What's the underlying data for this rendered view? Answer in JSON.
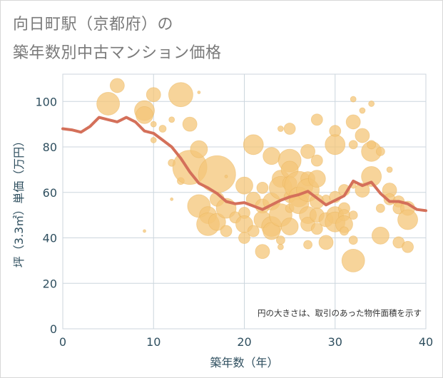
{
  "title": {
    "line1": "向日町駅（京都府）の",
    "line2": "築年数別中古マンション価格"
  },
  "colors": {
    "bubble": "#f4c678",
    "bubble_stroke": "#e9b35a",
    "line": "#d4705a",
    "grid": "#ccd6dd",
    "axis_text": "#2f4f5f",
    "plot_bg": "#ffffff"
  },
  "chart_data": {
    "type": "scatter",
    "title": "向日町駅（京都府）の築年数別中古マンション価格",
    "xlabel": "築年数（年）",
    "ylabel": "坪（3.3㎡）単価（万円）",
    "xlim": [
      0,
      40
    ],
    "ylim": [
      0,
      112
    ],
    "xticks": [
      0,
      10,
      20,
      30,
      40
    ],
    "yticks": [
      0,
      20,
      40,
      60,
      80,
      100
    ],
    "grid": true,
    "note": "円の大きさは、取引のあった物件面積を示す",
    "series": [
      {
        "type": "bubble",
        "points": [
          {
            "x": 5,
            "y": 99,
            "s": 16
          },
          {
            "x": 6,
            "y": 107,
            "s": 10
          },
          {
            "x": 9,
            "y": 96,
            "s": 14
          },
          {
            "x": 9,
            "y": 94,
            "s": 12
          },
          {
            "x": 9,
            "y": 43,
            "s": 2
          },
          {
            "x": 10,
            "y": 103,
            "s": 10
          },
          {
            "x": 10,
            "y": 90,
            "s": 4
          },
          {
            "x": 10,
            "y": 83,
            "s": 4
          },
          {
            "x": 11,
            "y": 88,
            "s": 5
          },
          {
            "x": 12,
            "y": 92,
            "s": 4
          },
          {
            "x": 12,
            "y": 73,
            "s": 5
          },
          {
            "x": 12,
            "y": 57,
            "s": 2
          },
          {
            "x": 13,
            "y": 103,
            "s": 17
          },
          {
            "x": 13,
            "y": 65,
            "s": 5
          },
          {
            "x": 14,
            "y": 90,
            "s": 10
          },
          {
            "x": 14,
            "y": 71,
            "s": 24
          },
          {
            "x": 15,
            "y": 104,
            "s": 2
          },
          {
            "x": 15,
            "y": 79,
            "s": 12
          },
          {
            "x": 15,
            "y": 54,
            "s": 16
          },
          {
            "x": 16,
            "y": 50,
            "s": 12
          },
          {
            "x": 16,
            "y": 46,
            "s": 16
          },
          {
            "x": 17,
            "y": 68,
            "s": 26
          },
          {
            "x": 17,
            "y": 57,
            "s": 10
          },
          {
            "x": 17,
            "y": 47,
            "s": 12
          },
          {
            "x": 18,
            "y": 67,
            "s": 2
          },
          {
            "x": 18,
            "y": 53,
            "s": 14
          },
          {
            "x": 18,
            "y": 43,
            "s": 8
          },
          {
            "x": 19,
            "y": 49,
            "s": 8
          },
          {
            "x": 20,
            "y": 63,
            "s": 12
          },
          {
            "x": 20,
            "y": 51,
            "s": 8
          },
          {
            "x": 20,
            "y": 46,
            "s": 12
          },
          {
            "x": 20,
            "y": 40,
            "s": 8
          },
          {
            "x": 21,
            "y": 81,
            "s": 14
          },
          {
            "x": 21,
            "y": 57,
            "s": 10
          },
          {
            "x": 21,
            "y": 43,
            "s": 8
          },
          {
            "x": 22,
            "y": 62,
            "s": 8
          },
          {
            "x": 22,
            "y": 54,
            "s": 10
          },
          {
            "x": 22,
            "y": 48,
            "s": 12
          },
          {
            "x": 22,
            "y": 34,
            "s": 10
          },
          {
            "x": 23,
            "y": 76,
            "s": 12
          },
          {
            "x": 23,
            "y": 56,
            "s": 12
          },
          {
            "x": 23,
            "y": 45,
            "s": 14
          },
          {
            "x": 23,
            "y": 43,
            "s": 12
          },
          {
            "x": 24,
            "y": 88,
            "s": 4
          },
          {
            "x": 24,
            "y": 66,
            "s": 12
          },
          {
            "x": 24,
            "y": 62,
            "s": 16
          },
          {
            "x": 24,
            "y": 50,
            "s": 16
          },
          {
            "x": 24,
            "y": 39,
            "s": 6
          },
          {
            "x": 24,
            "y": 36,
            "s": 4
          },
          {
            "x": 25,
            "y": 88,
            "s": 8
          },
          {
            "x": 25,
            "y": 74,
            "s": 16
          },
          {
            "x": 25,
            "y": 70,
            "s": 12
          },
          {
            "x": 25,
            "y": 64,
            "s": 10
          },
          {
            "x": 25,
            "y": 58,
            "s": 8
          },
          {
            "x": 25,
            "y": 53,
            "s": 6
          },
          {
            "x": 25,
            "y": 45,
            "s": 12
          },
          {
            "x": 26,
            "y": 63,
            "s": 20
          },
          {
            "x": 26,
            "y": 58,
            "s": 14
          },
          {
            "x": 26,
            "y": 55,
            "s": 14
          },
          {
            "x": 27,
            "y": 78,
            "s": 10
          },
          {
            "x": 27,
            "y": 66,
            "s": 10
          },
          {
            "x": 27,
            "y": 61,
            "s": 16
          },
          {
            "x": 27,
            "y": 50,
            "s": 12
          },
          {
            "x": 27,
            "y": 46,
            "s": 10
          },
          {
            "x": 27,
            "y": 37,
            "s": 6
          },
          {
            "x": 28,
            "y": 92,
            "s": 8
          },
          {
            "x": 28,
            "y": 74,
            "s": 8
          },
          {
            "x": 28,
            "y": 66,
            "s": 12
          },
          {
            "x": 28,
            "y": 56,
            "s": 10
          },
          {
            "x": 28,
            "y": 50,
            "s": 10
          },
          {
            "x": 28,
            "y": 44,
            "s": 8
          },
          {
            "x": 29,
            "y": 57,
            "s": 6
          },
          {
            "x": 29,
            "y": 48,
            "s": 10
          },
          {
            "x": 29,
            "y": 38,
            "s": 10
          },
          {
            "x": 30,
            "y": 87,
            "s": 8
          },
          {
            "x": 30,
            "y": 81,
            "s": 14
          },
          {
            "x": 30,
            "y": 58,
            "s": 8
          },
          {
            "x": 30,
            "y": 50,
            "s": 12
          },
          {
            "x": 30,
            "y": 47,
            "s": 14
          },
          {
            "x": 31,
            "y": 61,
            "s": 8
          },
          {
            "x": 31,
            "y": 53,
            "s": 8
          },
          {
            "x": 31,
            "y": 50,
            "s": 8
          },
          {
            "x": 31,
            "y": 46,
            "s": 12
          },
          {
            "x": 31,
            "y": 43,
            "s": 6
          },
          {
            "x": 32,
            "y": 101,
            "s": 4
          },
          {
            "x": 32,
            "y": 91,
            "s": 10
          },
          {
            "x": 32,
            "y": 81,
            "s": 6
          },
          {
            "x": 32,
            "y": 63,
            "s": 4
          },
          {
            "x": 32,
            "y": 50,
            "s": 6
          },
          {
            "x": 32,
            "y": 39,
            "s": 6
          },
          {
            "x": 32,
            "y": 30,
            "s": 16
          },
          {
            "x": 33,
            "y": 96,
            "s": 4
          },
          {
            "x": 33,
            "y": 85,
            "s": 10
          },
          {
            "x": 33,
            "y": 61,
            "s": 10
          },
          {
            "x": 34,
            "y": 99,
            "s": 4
          },
          {
            "x": 34,
            "y": 78,
            "s": 14
          },
          {
            "x": 34,
            "y": 67,
            "s": 14
          },
          {
            "x": 34,
            "y": 81,
            "s": 6
          },
          {
            "x": 35,
            "y": 78,
            "s": 6
          },
          {
            "x": 35,
            "y": 53,
            "s": 6
          },
          {
            "x": 35,
            "y": 41,
            "s": 12
          },
          {
            "x": 36,
            "y": 70,
            "s": 4
          },
          {
            "x": 36,
            "y": 61,
            "s": 10
          },
          {
            "x": 36,
            "y": 57,
            "s": 8
          },
          {
            "x": 37,
            "y": 56,
            "s": 8
          },
          {
            "x": 37,
            "y": 53,
            "s": 8
          },
          {
            "x": 37,
            "y": 38,
            "s": 8
          },
          {
            "x": 38,
            "y": 53,
            "s": 10
          },
          {
            "x": 38,
            "y": 48,
            "s": 14
          },
          {
            "x": 38,
            "y": 36,
            "s": 8
          }
        ]
      },
      {
        "type": "line",
        "points": [
          {
            "x": 0,
            "y": 88
          },
          {
            "x": 1,
            "y": 87.5
          },
          {
            "x": 2,
            "y": 86.5
          },
          {
            "x": 3,
            "y": 89
          },
          {
            "x": 4,
            "y": 93
          },
          {
            "x": 5,
            "y": 92
          },
          {
            "x": 6,
            "y": 91
          },
          {
            "x": 7,
            "y": 93
          },
          {
            "x": 8,
            "y": 91
          },
          {
            "x": 9,
            "y": 87
          },
          {
            "x": 10,
            "y": 86
          },
          {
            "x": 11,
            "y": 83
          },
          {
            "x": 12,
            "y": 80
          },
          {
            "x": 13,
            "y": 75
          },
          {
            "x": 14,
            "y": 69
          },
          {
            "x": 15,
            "y": 64
          },
          {
            "x": 16,
            "y": 62
          },
          {
            "x": 17,
            "y": 59.5
          },
          {
            "x": 18,
            "y": 56
          },
          {
            "x": 19,
            "y": 55
          },
          {
            "x": 20,
            "y": 55.5
          },
          {
            "x": 21,
            "y": 54
          },
          {
            "x": 22,
            "y": 52.5
          },
          {
            "x": 23,
            "y": 54.5
          },
          {
            "x": 24,
            "y": 56.5
          },
          {
            "x": 25,
            "y": 58
          },
          {
            "x": 26,
            "y": 59
          },
          {
            "x": 27,
            "y": 60.5
          },
          {
            "x": 28,
            "y": 57.5
          },
          {
            "x": 29,
            "y": 54.5
          },
          {
            "x": 30,
            "y": 56.5
          },
          {
            "x": 31,
            "y": 58.5
          },
          {
            "x": 32,
            "y": 65
          },
          {
            "x": 33,
            "y": 63
          },
          {
            "x": 34,
            "y": 64.5
          },
          {
            "x": 35,
            "y": 59.5
          },
          {
            "x": 36,
            "y": 56
          },
          {
            "x": 37,
            "y": 56
          },
          {
            "x": 38,
            "y": 55
          },
          {
            "x": 39,
            "y": 52.5
          },
          {
            "x": 40,
            "y": 52
          }
        ]
      }
    ]
  }
}
